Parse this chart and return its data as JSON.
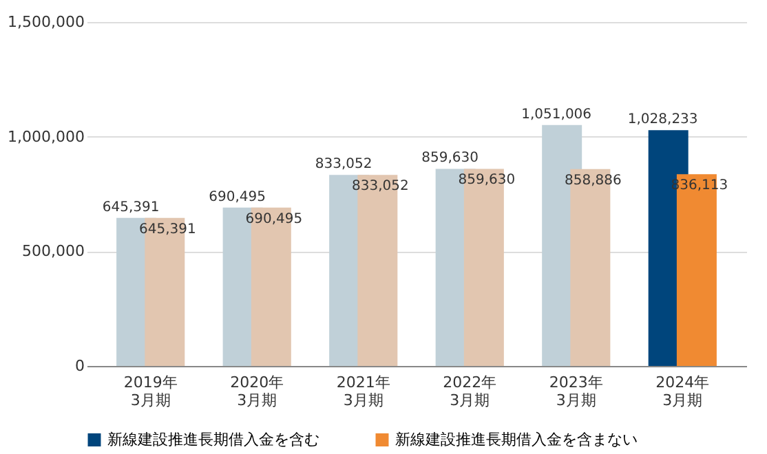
{
  "chart_data": {
    "type": "bar",
    "categories": [
      "2019年\n3月期",
      "2020年\n3月期",
      "2021年\n3月期",
      "2022年\n3月期",
      "2023年\n3月期",
      "2024年\n3月期"
    ],
    "series": [
      {
        "name": "新線建設推進長期借入金を含む",
        "color": "#00457c",
        "colors": [
          "#c0d0d8",
          "#c0d0d8",
          "#c0d0d8",
          "#c0d0d8",
          "#c0d0d8",
          "#00457c"
        ],
        "values": [
          645391,
          690495,
          833052,
          859630,
          1051006,
          1028233
        ],
        "value_labels": [
          "645,391",
          "690,495",
          "833,052",
          "859,630",
          "1,051,006",
          "1,028,233"
        ]
      },
      {
        "name": "新線建設推進長期借入金を含まない",
        "color": "#f08a32",
        "colors": [
          "#e2c6b0",
          "#e2c6b0",
          "#e2c6b0",
          "#e2c6b0",
          "#e2c6b0",
          "#f08a32"
        ],
        "values": [
          645391,
          690495,
          833052,
          859630,
          858886,
          836113
        ],
        "value_labels": [
          "645,391",
          "690,495",
          "833,052",
          "859,630",
          "858,886",
          "836,113"
        ]
      }
    ],
    "ylim": [
      0,
      1500000
    ],
    "yticks": [
      {
        "value": 0,
        "label": "0"
      },
      {
        "value": 500000,
        "label": "500,000"
      },
      {
        "value": 1000000,
        "label": "1,000,000"
      },
      {
        "value": 1500000,
        "label": "1,500,000"
      }
    ],
    "grid": "y",
    "legend": "bottom"
  }
}
